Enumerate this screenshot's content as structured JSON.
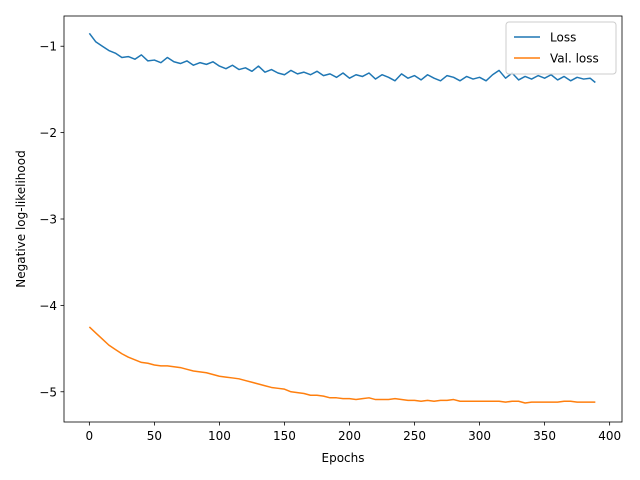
{
  "chart_data": {
    "type": "line",
    "xlabel": "Epochs",
    "ylabel": "Negative log-likelihood",
    "x": [
      0,
      5,
      10,
      15,
      20,
      25,
      30,
      35,
      40,
      45,
      50,
      55,
      60,
      65,
      70,
      75,
      80,
      85,
      90,
      95,
      100,
      105,
      110,
      115,
      120,
      125,
      130,
      135,
      140,
      145,
      150,
      155,
      160,
      165,
      170,
      175,
      180,
      185,
      190,
      195,
      200,
      205,
      210,
      215,
      220,
      225,
      230,
      235,
      240,
      245,
      250,
      255,
      260,
      265,
      270,
      275,
      280,
      285,
      290,
      295,
      300,
      305,
      310,
      315,
      320,
      325,
      330,
      335,
      340,
      345,
      350,
      355,
      360,
      365,
      370,
      375,
      380,
      385,
      389
    ],
    "series": [
      {
        "name": "Loss",
        "color": "#1f77b4",
        "values": [
          -0.85,
          -0.95,
          -1.0,
          -1.05,
          -1.08,
          -1.13,
          -1.12,
          -1.15,
          -1.1,
          -1.17,
          -1.16,
          -1.19,
          -1.13,
          -1.18,
          -1.2,
          -1.17,
          -1.22,
          -1.19,
          -1.21,
          -1.18,
          -1.23,
          -1.26,
          -1.22,
          -1.27,
          -1.25,
          -1.29,
          -1.23,
          -1.3,
          -1.27,
          -1.31,
          -1.33,
          -1.28,
          -1.32,
          -1.3,
          -1.33,
          -1.29,
          -1.34,
          -1.32,
          -1.36,
          -1.31,
          -1.37,
          -1.33,
          -1.35,
          -1.31,
          -1.38,
          -1.33,
          -1.36,
          -1.4,
          -1.32,
          -1.37,
          -1.34,
          -1.39,
          -1.33,
          -1.37,
          -1.4,
          -1.34,
          -1.36,
          -1.4,
          -1.35,
          -1.38,
          -1.36,
          -1.4,
          -1.33,
          -1.28,
          -1.37,
          -1.31,
          -1.39,
          -1.35,
          -1.38,
          -1.34,
          -1.37,
          -1.33,
          -1.39,
          -1.35,
          -1.4,
          -1.36,
          -1.38,
          -1.37,
          -1.42
        ]
      },
      {
        "name": "Val. loss",
        "color": "#ff7f0e",
        "values": [
          -4.25,
          -4.32,
          -4.39,
          -4.46,
          -4.51,
          -4.56,
          -4.6,
          -4.63,
          -4.66,
          -4.67,
          -4.69,
          -4.7,
          -4.7,
          -4.71,
          -4.72,
          -4.74,
          -4.76,
          -4.77,
          -4.78,
          -4.8,
          -4.82,
          -4.83,
          -4.84,
          -4.85,
          -4.87,
          -4.89,
          -4.91,
          -4.93,
          -4.95,
          -4.96,
          -4.97,
          -5.0,
          -5.01,
          -5.02,
          -5.04,
          -5.04,
          -5.05,
          -5.07,
          -5.07,
          -5.08,
          -5.08,
          -5.09,
          -5.08,
          -5.07,
          -5.09,
          -5.09,
          -5.09,
          -5.08,
          -5.09,
          -5.1,
          -5.1,
          -5.11,
          -5.1,
          -5.11,
          -5.1,
          -5.1,
          -5.09,
          -5.11,
          -5.11,
          -5.11,
          -5.11,
          -5.11,
          -5.11,
          -5.11,
          -5.12,
          -5.11,
          -5.11,
          -5.13,
          -5.12,
          -5.12,
          -5.12,
          -5.12,
          -5.12,
          -5.11,
          -5.11,
          -5.12,
          -5.12,
          -5.12,
          -5.12
        ]
      }
    ],
    "xlim": [
      -19.5,
      409.5
    ],
    "ylim": [
      -5.35,
      -0.65
    ],
    "xticks": [
      0,
      50,
      100,
      150,
      200,
      250,
      300,
      350,
      400
    ],
    "yticks": [
      {
        "value": -5,
        "label": "−5"
      },
      {
        "value": -4,
        "label": "−4"
      },
      {
        "value": -3,
        "label": "−3"
      },
      {
        "value": -2,
        "label": "−2"
      },
      {
        "value": -1,
        "label": "−1"
      }
    ],
    "legend": "upper right",
    "grid": false
  }
}
